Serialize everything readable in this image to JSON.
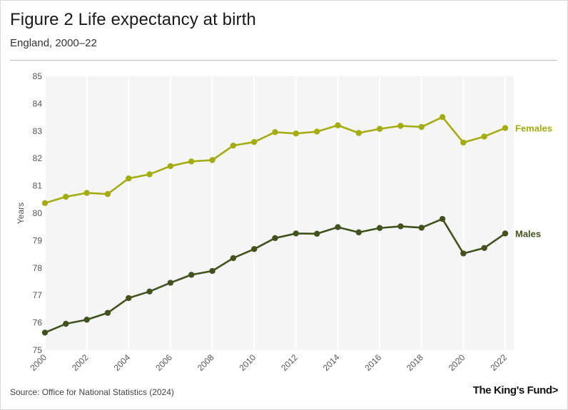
{
  "header": {
    "title": "Figure 2 Life expectancy at birth",
    "subtitle": "England, 2000–22"
  },
  "footer": {
    "source": "Source: Office for National Statistics (2024)",
    "brand": "The King's Fund",
    "brand_arrow": ">"
  },
  "colors": {
    "females": "#a3ad10",
    "males": "#43511f",
    "plot_bg": "#f5f5f5",
    "gridline": "#ffffff"
  },
  "chart_data": {
    "type": "line",
    "title": "Figure 2 Life expectancy at birth",
    "subtitle": "England, 2000–22",
    "xlabel": "",
    "ylabel": "Years",
    "x": [
      2000,
      2001,
      2002,
      2003,
      2004,
      2005,
      2006,
      2007,
      2008,
      2009,
      2010,
      2011,
      2012,
      2013,
      2014,
      2015,
      2016,
      2017,
      2018,
      2019,
      2020,
      2021,
      2022
    ],
    "x_tick_labels": [
      "2000",
      "2002",
      "2004",
      "2006",
      "2008",
      "2010",
      "2012",
      "2014",
      "2016",
      "2018",
      "2020",
      "2022"
    ],
    "y_ticks": [
      75,
      76,
      77,
      78,
      79,
      80,
      81,
      82,
      83,
      84,
      85
    ],
    "ylim": [
      75,
      85
    ],
    "xlim": [
      2000,
      2022
    ],
    "legend": "direct labels at right end of lines",
    "series": [
      {
        "name": "Females",
        "values": [
          80.37,
          80.6,
          80.74,
          80.7,
          81.27,
          81.42,
          81.72,
          81.89,
          81.94,
          82.47,
          82.6,
          82.96,
          82.91,
          82.98,
          83.21,
          82.93,
          83.08,
          83.19,
          83.15,
          83.51,
          82.58,
          82.8,
          83.11
        ]
      },
      {
        "name": "Males",
        "values": [
          75.64,
          75.96,
          76.11,
          76.36,
          76.9,
          77.14,
          77.46,
          77.75,
          77.89,
          78.36,
          78.69,
          79.09,
          79.26,
          79.25,
          79.49,
          79.3,
          79.46,
          79.52,
          79.47,
          79.79,
          78.53,
          78.73,
          79.26
        ]
      }
    ]
  }
}
